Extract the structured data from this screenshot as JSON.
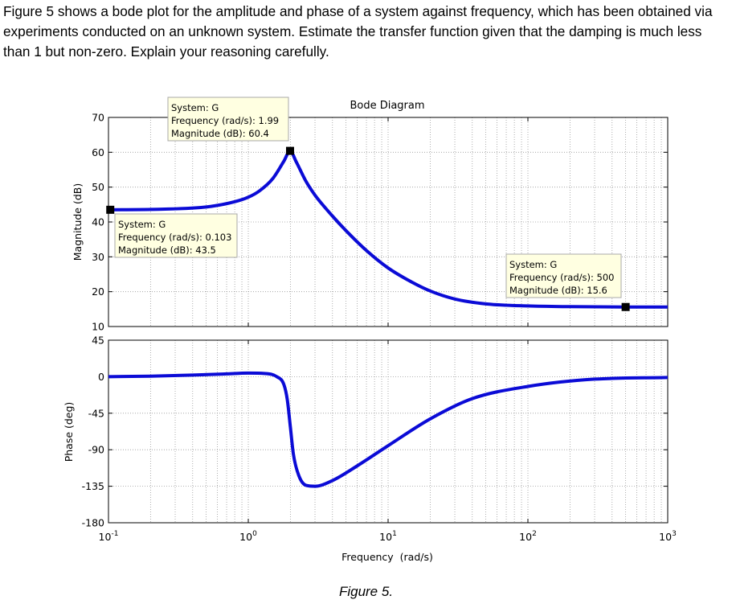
{
  "question": "Figure 5 shows a bode plot for the amplitude and phase of a system against frequency, which has been obtained via experiments conducted on an unknown system. Estimate the transfer function given that the damping is much less than 1 but non-zero. Explain your reasoning carefully.",
  "caption": "Figure 5.",
  "chart_data": [
    {
      "type": "line",
      "title": "Bode Diagram",
      "ylabel": "Magnitude (dB)",
      "xlabel": "",
      "xscale": "log",
      "xlim": [
        0.1,
        1000
      ],
      "ylim": [
        10,
        70
      ],
      "yticks": [
        10,
        20,
        30,
        40,
        50,
        60,
        70
      ],
      "grid": true,
      "series": [
        {
          "x": [
            0.1,
            0.2,
            0.5,
            0.8,
            1.0,
            1.2,
            1.5,
            1.8,
            1.99,
            2.2,
            2.6,
            3.0,
            4.0,
            5.0,
            7.0,
            10,
            15,
            20,
            30,
            50,
            100,
            200,
            500,
            1000
          ],
          "y": [
            43.5,
            43.6,
            44.3,
            45.8,
            47.1,
            48.9,
            52.5,
            57.5,
            60.4,
            57.3,
            51.5,
            47.7,
            41.7,
            37.5,
            31.8,
            26.8,
            22.6,
            20.2,
            17.9,
            16.5,
            15.9,
            15.7,
            15.6,
            15.6
          ],
          "color": "#0b0bd6"
        }
      ],
      "datatips": [
        {
          "system": "System: G",
          "frequency": "Frequency (rad/s): 1.99",
          "magnitude": "Magnitude (dB): 60.4",
          "x": 1.99,
          "y": 60.4
        },
        {
          "system": "System: G",
          "frequency": "Frequency (rad/s): 0.103",
          "magnitude": "Magnitude (dB): 43.5",
          "x": 0.103,
          "y": 43.5
        },
        {
          "system": "System: G",
          "frequency": "Frequency (rad/s): 500",
          "magnitude": "Magnitude (dB): 15.6",
          "x": 500,
          "y": 15.6
        }
      ]
    },
    {
      "type": "line",
      "ylabel": "Phase (deg)",
      "xlabel": "Frequency  (rad/s)",
      "xscale": "log",
      "xlim": [
        0.1,
        1000
      ],
      "ylim": [
        -180,
        45
      ],
      "yticks": [
        -180,
        -135,
        -90,
        -45,
        0,
        45
      ],
      "xticks": [
        "10^-1",
        "10^0",
        "10^1",
        "10^2",
        "10^3"
      ],
      "grid": true,
      "series": [
        {
          "x": [
            0.1,
            0.2,
            0.4,
            0.7,
            1.0,
            1.3,
            1.6,
            1.8,
            1.9,
            2.0,
            2.1,
            2.3,
            2.6,
            3.0,
            4.0,
            6.0,
            10,
            20,
            40,
            100,
            300,
            1000
          ],
          "y": [
            0,
            0.7,
            2,
            3.5,
            4.5,
            4,
            0,
            -10,
            -28,
            -62,
            -95,
            -122,
            -134,
            -135,
            -128,
            -110,
            -85,
            -52,
            -27,
            -12,
            -3,
            -1
          ],
          "color": "#0b0bd6"
        }
      ]
    }
  ]
}
